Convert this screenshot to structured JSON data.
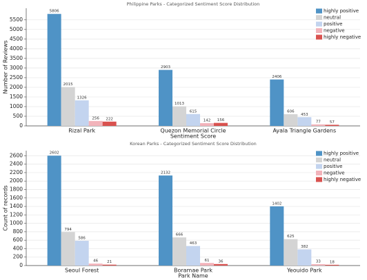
{
  "chart_data": [
    {
      "type": "bar",
      "title": "Philippine Parks - Categorized Sentiment Score Distribution",
      "x_label": "Sentiment Score",
      "y_label": "Number of Reviews",
      "categories": [
        "Rizal Park",
        "Quezon Memorial Circle",
        "Ayala Triangle Gardens"
      ],
      "series": [
        {
          "name": "highly positive",
          "color": "#4f93c6",
          "values": [
            5806,
            2903,
            2406
          ]
        },
        {
          "name": "neutral",
          "color": "#d4d4d4",
          "values": [
            2015,
            1013,
            606
          ]
        },
        {
          "name": "positive",
          "color": "#c3d4ef",
          "values": [
            1326,
            615,
            453
          ]
        },
        {
          "name": "negative",
          "color": "#f2b3ba",
          "values": [
            256,
            142,
            77
          ]
        },
        {
          "name": "highly negative",
          "color": "#d9524f",
          "values": [
            222,
            156,
            57
          ]
        }
      ],
      "ylim": [
        0,
        6100
      ],
      "yticks": [
        0,
        500,
        1000,
        1500,
        2000,
        2500,
        3000,
        3500,
        4000,
        4500,
        5000,
        5500
      ],
      "grid": true,
      "legend": "upper right"
    },
    {
      "type": "bar",
      "title": "Korean Parks - Categorized Sentiment Score Distribution",
      "x_label": "Park Name",
      "y_label": "Count of records",
      "categories": [
        "Seoul Forest",
        "Boramae Park",
        "Yeouido Park"
      ],
      "series": [
        {
          "name": "highly positive",
          "color": "#4f93c6",
          "values": [
            2602,
            2132,
            1402
          ]
        },
        {
          "name": "neutral",
          "color": "#d4d4d4",
          "values": [
            794,
            666,
            625
          ]
        },
        {
          "name": "positive",
          "color": "#c3d4ef",
          "values": [
            586,
            463,
            382
          ]
        },
        {
          "name": "negative",
          "color": "#f2b3ba",
          "values": [
            46,
            61,
            33
          ]
        },
        {
          "name": "highly negative",
          "color": "#d9524f",
          "values": [
            21,
            36,
            18
          ]
        }
      ],
      "ylim": [
        0,
        2720
      ],
      "yticks": [
        0,
        200,
        400,
        600,
        800,
        1000,
        1200,
        1400,
        1600,
        1800,
        2000,
        2200,
        2400,
        2600
      ],
      "grid": true,
      "legend": "upper right"
    }
  ]
}
